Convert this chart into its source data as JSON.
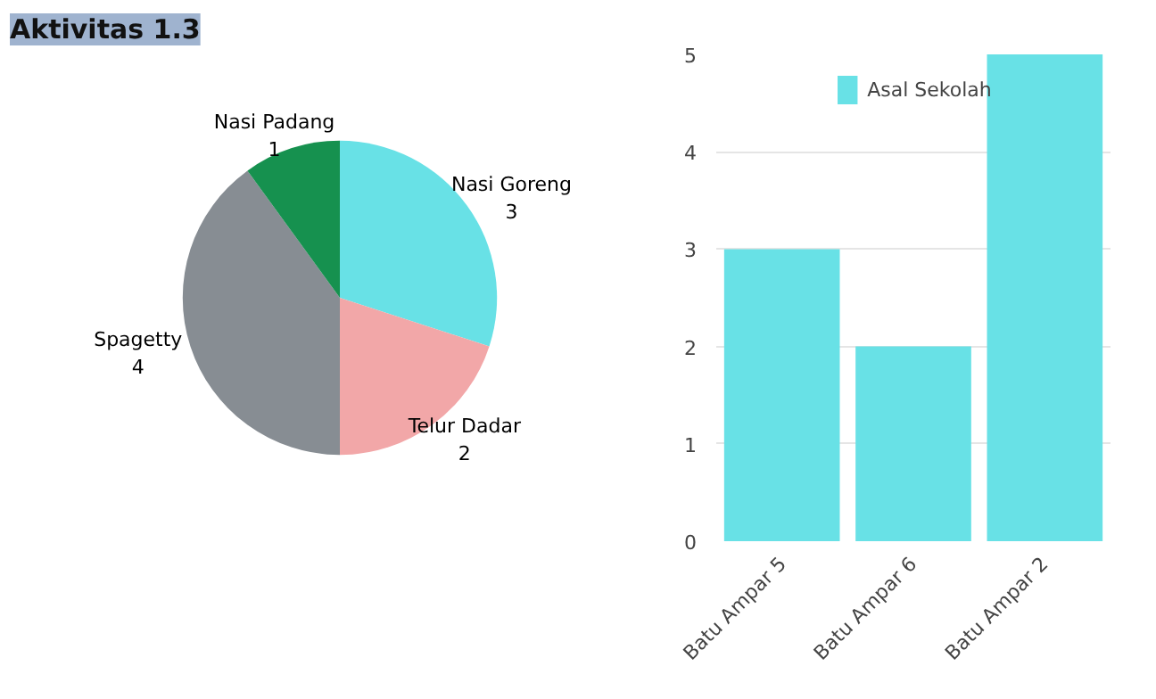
{
  "chart_data": [
    {
      "type": "pie",
      "title": "Aktivitas 1.3",
      "categories": [
        "Nasi Goreng",
        "Telur Dadar",
        "Spagetty",
        "Nasi Padang"
      ],
      "values": [
        3,
        2,
        4,
        1
      ],
      "colors": [
        "#68e1e6",
        "#f2a7a8",
        "#878d93",
        "#16914f"
      ],
      "data_labels": true
    },
    {
      "type": "bar",
      "categories": [
        "Batu Ampar 5",
        "Batu Ampar 6",
        "Batu Ampar 2"
      ],
      "series": [
        {
          "name": "Asal Sekolah",
          "color": "#68e1e6",
          "values": [
            3,
            2,
            5
          ]
        }
      ],
      "ylim": [
        0,
        5
      ],
      "yticks": [
        0,
        1,
        2,
        3,
        4,
        5
      ],
      "grid": "y",
      "legend": "top"
    }
  ]
}
